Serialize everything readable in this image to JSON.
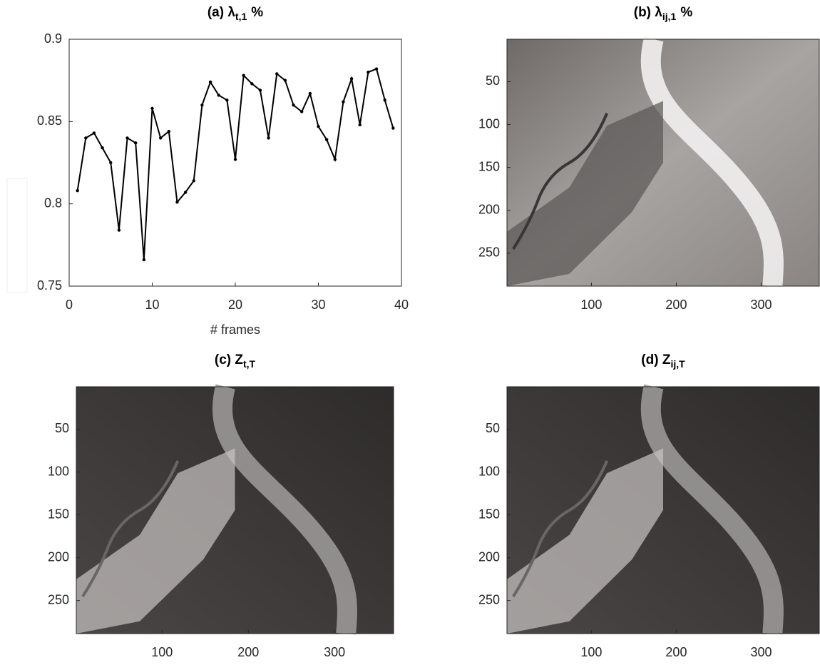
{
  "chart_data": [
    {
      "type": "line",
      "title": "(a) λ",
      "title_subscript": "t,1",
      "title_suffix": "%",
      "xlabel": "# frames",
      "x": [
        1,
        2,
        3,
        4,
        5,
        6,
        7,
        8,
        9,
        10,
        11,
        12,
        13,
        14,
        15,
        16,
        17,
        18,
        19,
        20,
        21,
        22,
        23,
        24,
        25,
        26,
        27,
        28,
        29,
        30,
        31,
        32,
        33,
        34,
        35,
        36,
        37,
        38,
        39
      ],
      "values": [
        0.808,
        0.84,
        0.843,
        0.834,
        0.825,
        0.784,
        0.84,
        0.837,
        0.766,
        0.858,
        0.84,
        0.844,
        0.801,
        0.807,
        0.814,
        0.86,
        0.874,
        0.866,
        0.863,
        0.827,
        0.878,
        0.873,
        0.869,
        0.84,
        0.879,
        0.875,
        0.86,
        0.856,
        0.867,
        0.847,
        0.839,
        0.827,
        0.862,
        0.876,
        0.848,
        0.88,
        0.882,
        0.863,
        0.846
      ],
      "color": "#000000",
      "xlim": [
        0,
        40
      ],
      "xticks": [
        0,
        10,
        20,
        30,
        40
      ],
      "ylim": [
        0.75,
        0.9
      ],
      "yticks": [
        0.75,
        0.8,
        0.85,
        0.9
      ]
    },
    {
      "type": "image",
      "title": "(b) λ",
      "title_subscript": "ij,1",
      "title_suffix": "%",
      "xlim": [
        0.5,
        368.5
      ],
      "xticks": [
        100,
        200,
        300
      ],
      "ylim": [
        0.5,
        288.5
      ],
      "yticks": [
        50,
        100,
        150,
        200,
        250
      ],
      "y_reversed": true
    },
    {
      "type": "image",
      "title": "(c)  Z",
      "title_subscript": "t,T",
      "xlim": [
        0.5,
        368.5
      ],
      "xticks": [
        100,
        200,
        300
      ],
      "ylim": [
        0.5,
        288.5
      ],
      "yticks": [
        50,
        100,
        150,
        200,
        250
      ],
      "y_reversed": true
    },
    {
      "type": "image",
      "title": "(d)  Z",
      "title_subscript": "ij,T",
      "xlim": [
        0.5,
        368.5
      ],
      "xticks": [
        100,
        200,
        300
      ],
      "ylim": [
        0.5,
        288.5
      ],
      "yticks": [
        50,
        100,
        150,
        200,
        250
      ],
      "y_reversed": true
    }
  ]
}
